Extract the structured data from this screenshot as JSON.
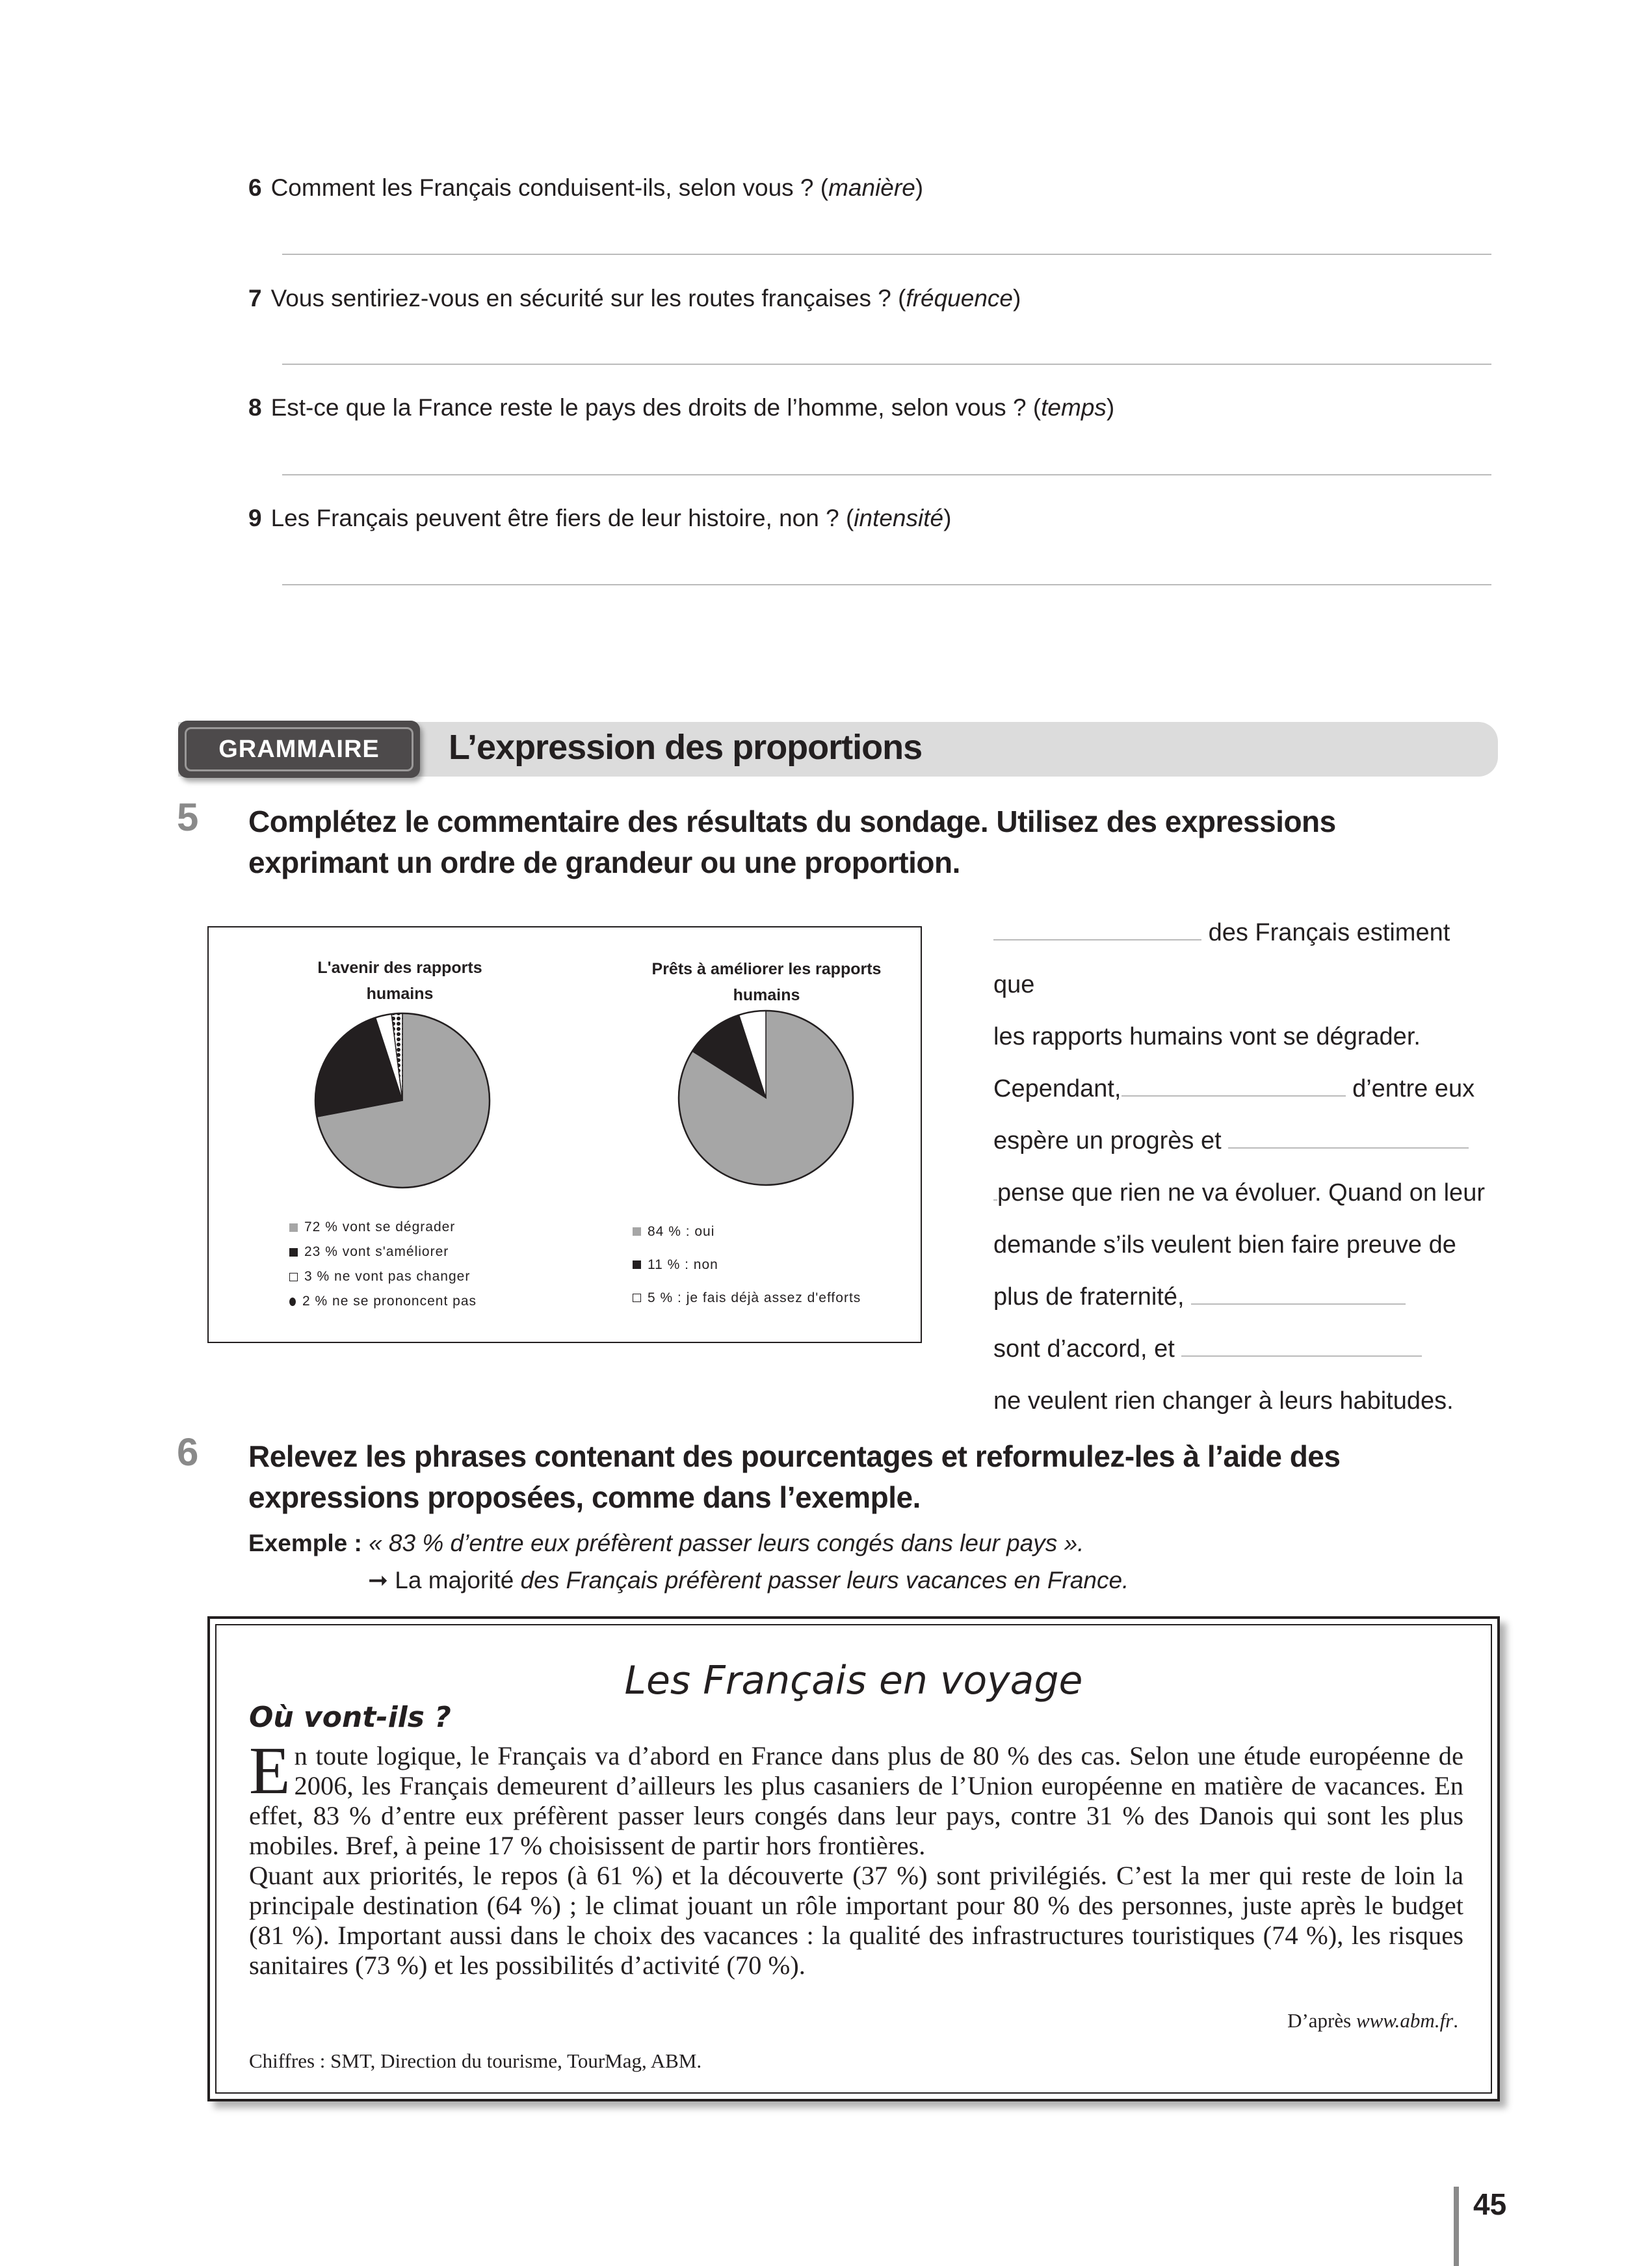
{
  "questions": [
    {
      "num": "6",
      "text": "Comment les Français conduisent-ils, selon vous ? (",
      "hint": "manière",
      "end": ")"
    },
    {
      "num": "7",
      "text": "Vous sentiriez-vous en sécurité sur les routes françaises ? (",
      "hint": "fréquence",
      "end": ")"
    },
    {
      "num": "8",
      "text": "Est-ce que la France reste le pays des droits de l’homme, selon vous ? (",
      "hint": "temps",
      "end": ")"
    },
    {
      "num": "9",
      "text": "Les Français peuvent être fiers de leur histoire, non ? (",
      "hint": "intensité",
      "end": ")"
    }
  ],
  "section": {
    "badge": "GRAMMAIRE",
    "title": "L’expression des proportions"
  },
  "exercise5": {
    "num": "5",
    "instruction_1": "Complétez le commentaire des résultats du sondage. Utilisez des expressions",
    "instruction_2": "exprimant un ordre de grandeur ou une proportion.",
    "text": {
      "t1": "des Français estiment que",
      "t2": "les rapports humains vont se dégrader.",
      "t3": "Cependant,",
      "t4": "d’entre eux",
      "t5": "espère un progrès et",
      "t6": "pense que rien ne va évoluer. Quand on leur",
      "t7": "demande s’ils veulent bien faire preuve de",
      "t8": "plus de fraternité,",
      "t9": "sont d’accord, et",
      "t10": "ne veulent rien changer à leurs habitudes."
    }
  },
  "chart_data": [
    {
      "type": "pie",
      "title": "L'avenir des rapports humains",
      "title_1": "L'avenir des rapports",
      "title_2": "humains",
      "categories": [
        "72 % vont se dégrader",
        "23 % vont s'améliorer",
        "3 % ne vont pas changer",
        "2 % ne se prononcent pas"
      ],
      "values": [
        72,
        23,
        3,
        2
      ],
      "colors": [
        "#a6a6a6",
        "#231f20",
        "#ffffff",
        "pattern-dots"
      ],
      "legend": "bottom"
    },
    {
      "type": "pie",
      "title": "Prêts à améliorer les rapports humains",
      "title_1": "Prêts à améliorer les rapports",
      "title_2": "humains",
      "categories": [
        "84 % : oui",
        "11 % : non",
        "5 % : je fais déjà assez d'efforts"
      ],
      "values": [
        84,
        11,
        5
      ],
      "colors": [
        "#a6a6a6",
        "#231f20",
        "#ffffff"
      ],
      "legend": "bottom"
    }
  ],
  "exercise6": {
    "num": "6",
    "instruction_1": "Relevez les phrases contenant des pourcentages et reformulez-les à l’aide des",
    "instruction_2": "expressions proposées, comme dans l’exemple.",
    "example_label": "Exemple :",
    "example_quote": "« 83 % d’entre eux préfèrent passer leurs congés dans leur pays ».",
    "arrow": "➞",
    "answer_plain": "La majorité",
    "answer_italic": "des Français préfèrent passer leurs vacances en France."
  },
  "article": {
    "title": "Les Français en voyage",
    "subtitle": "Où vont-ils ?",
    "drop_cap": "E",
    "p1": "n toute logique, le Français va d’abord en France dans plus de 80 % des cas. Selon une étude européenne de 2006, les Français demeurent d’ailleurs les plus casaniers de l’Union européenne en matière de vacances. En effet, 83 % d’entre eux préfèrent passer leurs congés dans leur pays, contre 31 % des Danois qui sont les plus mobiles. Bref, à peine 17 % choisissent de partir hors frontières.",
    "p2": "Quant aux priorités, le repos (à 61 %) et la découverte (37 %) sont privilégiés. C’est la mer qui reste de loin la principale destination (64 %) ; le climat jouant un rôle important pour 80 % des personnes, juste après le budget (81 %). Important aussi dans le choix des vacances : la qualité des infrastructures touristiques (74 %), les risques sanitaires (73 %) et les possibilités d’activité (70 %).",
    "source_prefix": "D’après ",
    "source_url": "www.abm.fr",
    "source_end": ".",
    "figures": "Chiffres : SMT, Direction du tourisme, TourMag, ABM."
  },
  "page_number": "45"
}
